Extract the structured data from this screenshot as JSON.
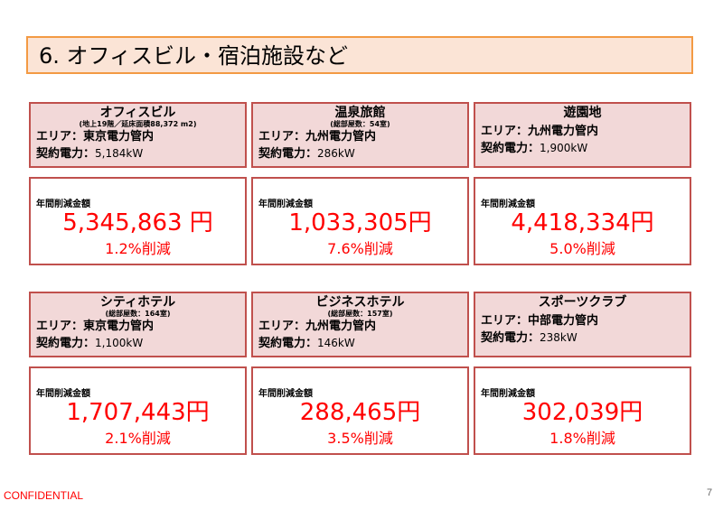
{
  "title": "6. オフィスビル・宿泊施設など",
  "area_label": "エリア：",
  "power_label": "契約電力：",
  "savings_label": "年間削減金額",
  "cards": [
    {
      "name": "オフィスビル",
      "sub": "(地上19階／延床面積88,372 m2)",
      "area": "東京電力管内",
      "power": "5,184kW",
      "amount": "5,345,863 円",
      "pct": "1.2%削減"
    },
    {
      "name": "温泉旅館",
      "sub": "(総部屋数：54室)",
      "area": "九州電力管内",
      "power": "286kW",
      "amount": "1,033,305円",
      "pct": "7.6%削減"
    },
    {
      "name": "遊園地",
      "sub": "",
      "area": "九州電力管内",
      "power": "1,900kW",
      "amount": "4,418,334円",
      "pct": "5.0%削減"
    },
    {
      "name": "シティホテル",
      "sub": "(総部屋数：164室)",
      "area": "東京電力管内",
      "power": "1,100kW",
      "amount": "1,707,443円",
      "pct": "2.1%削減"
    },
    {
      "name": "ビジネスホテル",
      "sub": "(総部屋数：157室)",
      "area": "九州電力管内",
      "power": "146kW",
      "amount": "288,465円",
      "pct": "3.5%削減"
    },
    {
      "name": "スポーツクラブ",
      "sub": "",
      "area": "中部電力管内",
      "power": "238kW",
      "amount": "302,039円",
      "pct": "1.8%削減"
    }
  ],
  "footer": {
    "confidential": "CONFIDENTIAL",
    "page_number": "7"
  }
}
